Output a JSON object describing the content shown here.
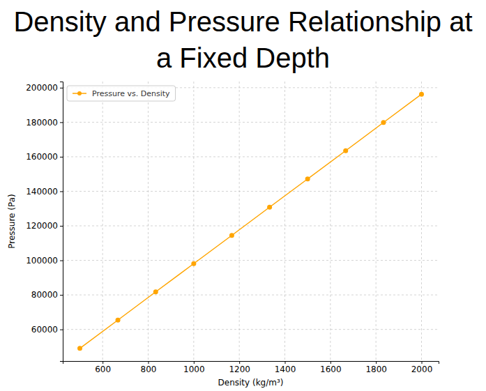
{
  "chart_data": {
    "type": "line",
    "title": "Density and Pressure Relationship at a Fixed Depth",
    "x_label": "Density (kg/m³)",
    "y_label": "Pressure (Pa)",
    "x": [
      500,
      667,
      833,
      1000,
      1167,
      1333,
      1500,
      1667,
      1833,
      2000
    ],
    "series": [
      {
        "name": "Pressure vs. Density",
        "color": "#ffa500",
        "marker": "o",
        "line_style": "solid",
        "values": [
          49050,
          65400,
          81750,
          98100,
          114450,
          130800,
          147150,
          163500,
          179850,
          196200
        ]
      }
    ],
    "xlim": [
      425,
      2075
    ],
    "xticks": [
      600,
      800,
      1000,
      1200,
      1400,
      1600,
      1800,
      2000
    ],
    "ylim": [
      41692.5,
      203557.5
    ],
    "yticks": [
      60000,
      80000,
      100000,
      120000,
      140000,
      160000,
      180000,
      200000
    ],
    "grid": true,
    "legend": "upper left"
  }
}
